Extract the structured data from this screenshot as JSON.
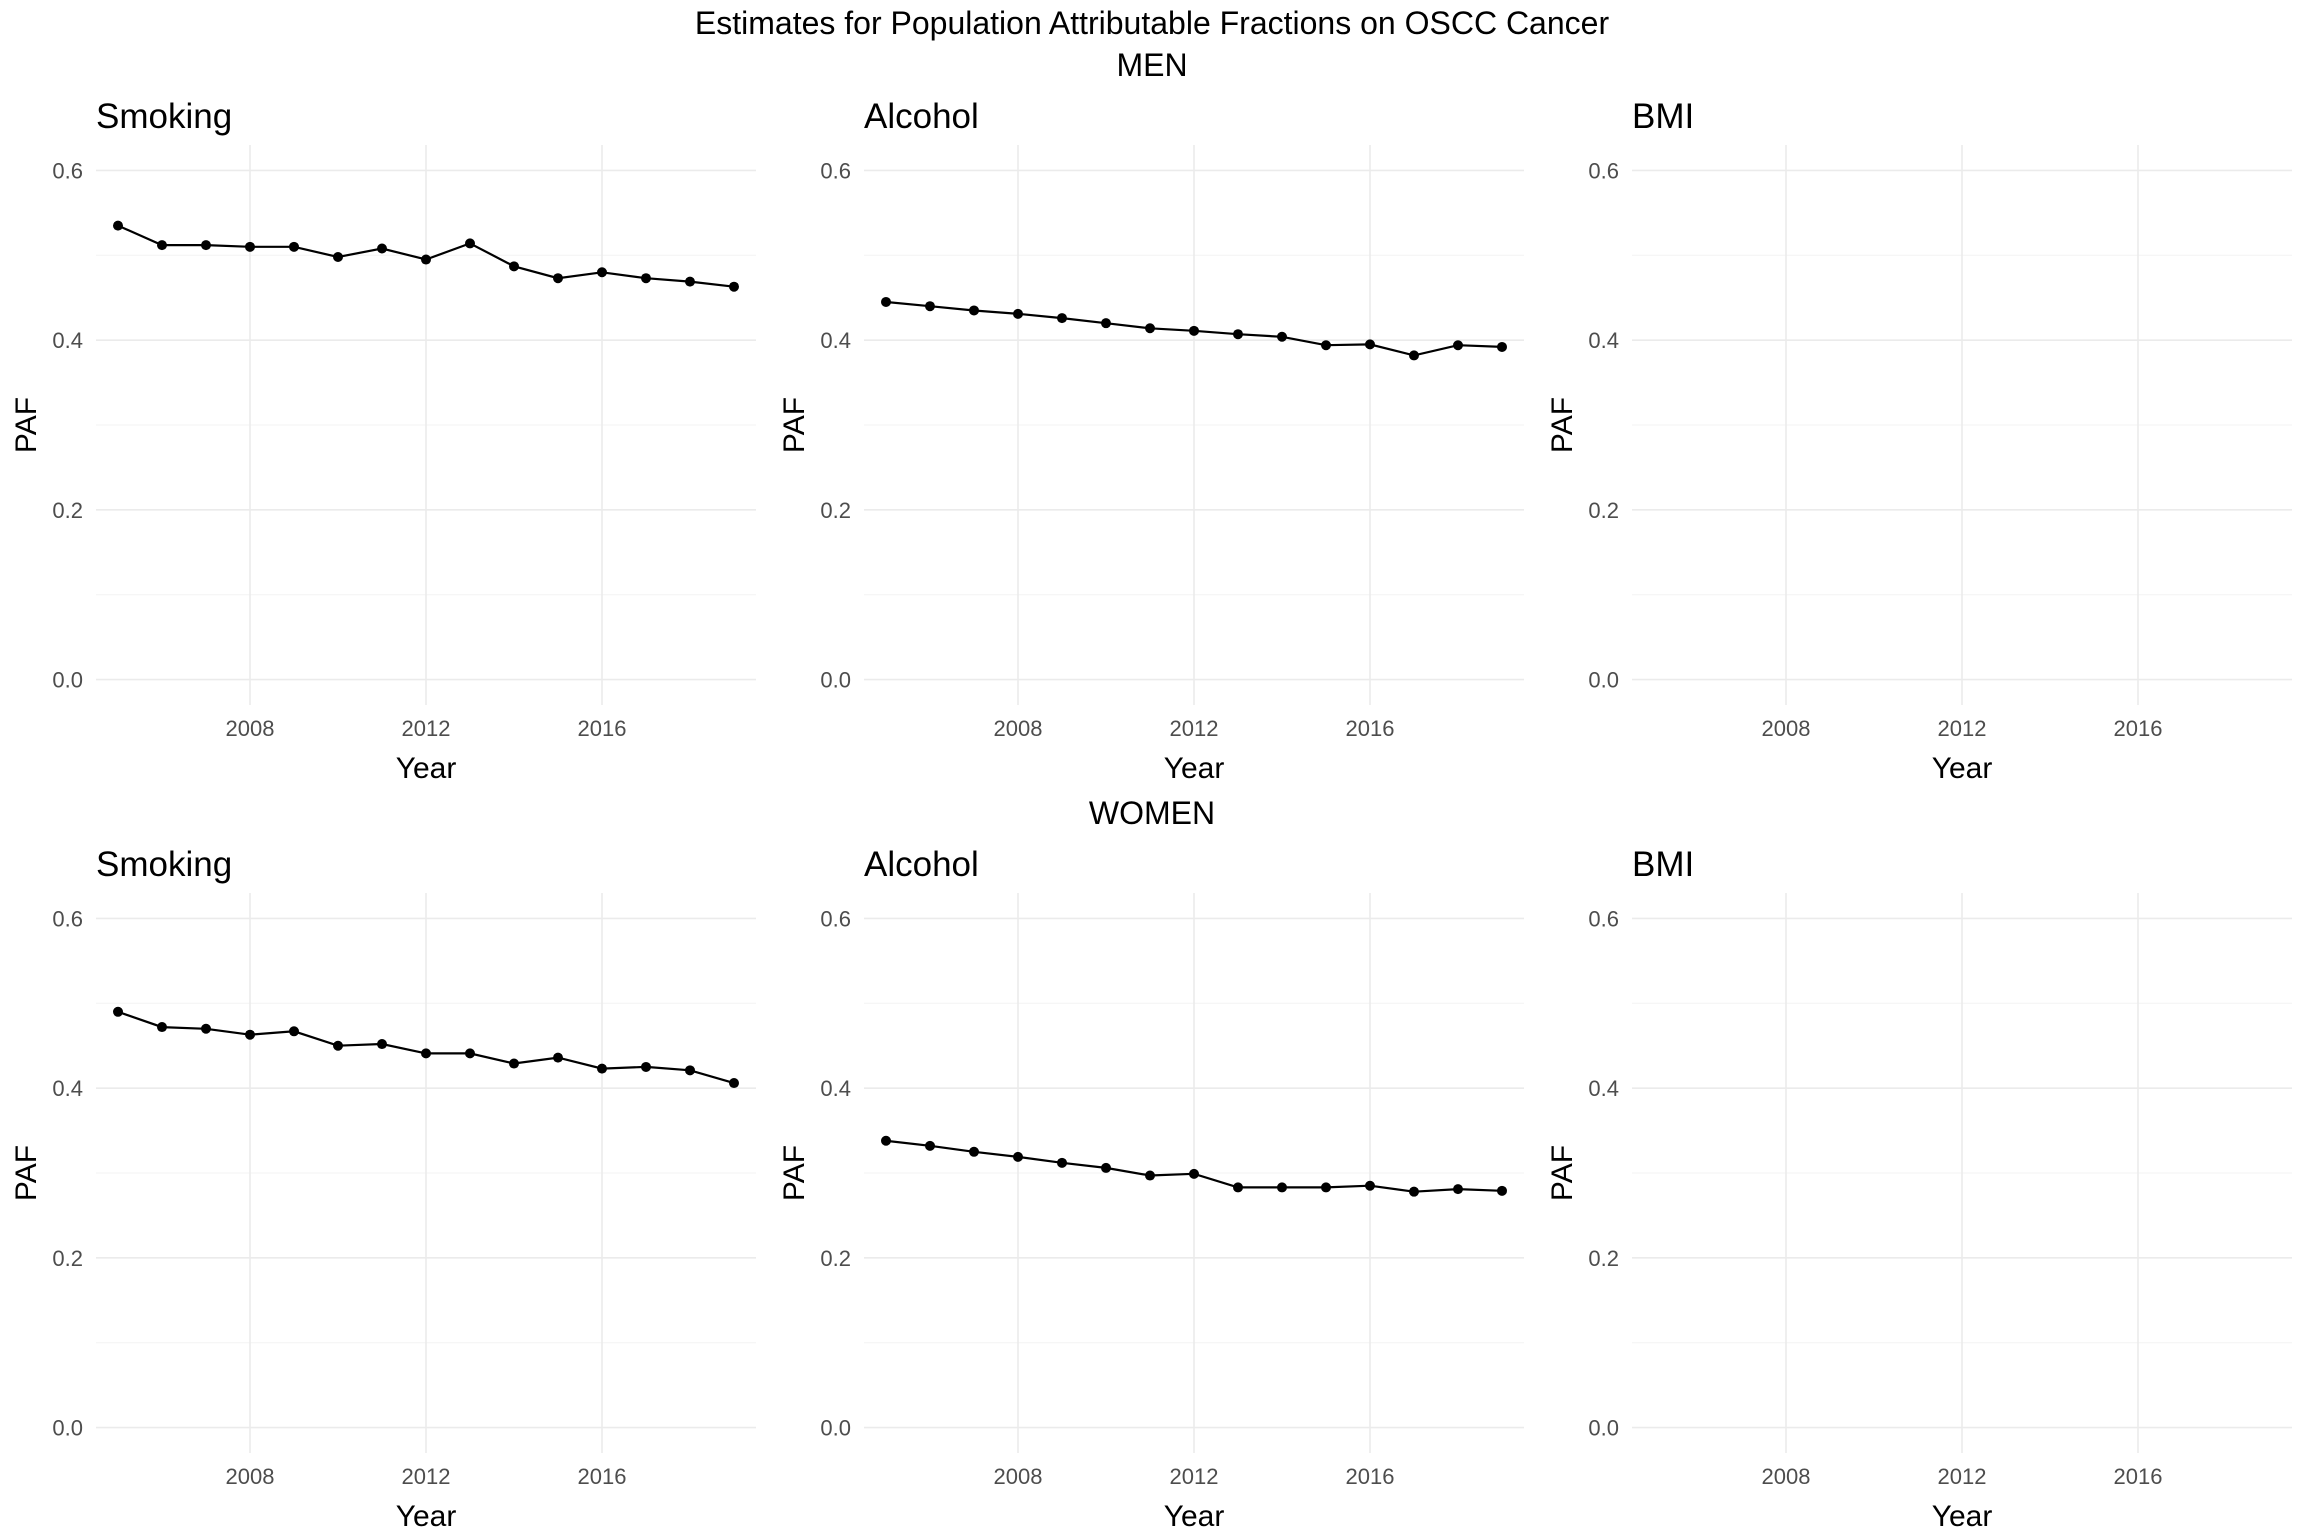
{
  "figure": {
    "title": "Estimates for Population Attributable Fractions on OSCC Cancer",
    "sections": [
      "MEN",
      "WOMEN"
    ]
  },
  "chart_data": [
    {
      "type": "line",
      "section": "MEN",
      "title": "Smoking",
      "xlabel": "Year",
      "ylabel": "PAF",
      "xlim": [
        2004.5,
        2019.5
      ],
      "ylim": [
        -0.03,
        0.63
      ],
      "xticks": [
        2008,
        2012,
        2016
      ],
      "yticks": [
        0.0,
        0.2,
        0.4,
        0.6
      ],
      "grid": true,
      "x": [
        2005,
        2006,
        2007,
        2008,
        2009,
        2010,
        2011,
        2012,
        2013,
        2014,
        2015,
        2016,
        2017,
        2018,
        2019
      ],
      "y": [
        0.535,
        0.512,
        0.512,
        0.51,
        0.51,
        0.498,
        0.508,
        0.495,
        0.514,
        0.487,
        0.473,
        0.48,
        0.473,
        0.469,
        0.463
      ]
    },
    {
      "type": "line",
      "section": "MEN",
      "title": "Alcohol",
      "xlabel": "Year",
      "ylabel": "PAF",
      "xlim": [
        2004.5,
        2019.5
      ],
      "ylim": [
        -0.03,
        0.63
      ],
      "xticks": [
        2008,
        2012,
        2016
      ],
      "yticks": [
        0.0,
        0.2,
        0.4,
        0.6
      ],
      "grid": true,
      "x": [
        2005,
        2006,
        2007,
        2008,
        2009,
        2010,
        2011,
        2012,
        2013,
        2014,
        2015,
        2016,
        2017,
        2018,
        2019
      ],
      "y": [
        0.445,
        0.44,
        0.435,
        0.431,
        0.426,
        0.42,
        0.414,
        0.411,
        0.407,
        0.404,
        0.394,
        0.395,
        0.382,
        0.394,
        0.392
      ]
    },
    {
      "type": "line",
      "section": "MEN",
      "title": "BMI",
      "xlabel": "Year",
      "ylabel": "PAF",
      "xlim": [
        2004.5,
        2019.5
      ],
      "ylim": [
        -0.03,
        0.63
      ],
      "xticks": [
        2008,
        2012,
        2016
      ],
      "yticks": [
        0.0,
        0.2,
        0.4,
        0.6
      ],
      "grid": true,
      "x": [],
      "y": []
    },
    {
      "type": "line",
      "section": "WOMEN",
      "title": "Smoking",
      "xlabel": "Year",
      "ylabel": "PAF",
      "xlim": [
        2004.5,
        2019.5
      ],
      "ylim": [
        -0.03,
        0.63
      ],
      "xticks": [
        2008,
        2012,
        2016
      ],
      "yticks": [
        0.0,
        0.2,
        0.4,
        0.6
      ],
      "grid": true,
      "x": [
        2005,
        2006,
        2007,
        2008,
        2009,
        2010,
        2011,
        2012,
        2013,
        2014,
        2015,
        2016,
        2017,
        2018,
        2019
      ],
      "y": [
        0.49,
        0.472,
        0.47,
        0.463,
        0.467,
        0.45,
        0.452,
        0.441,
        0.441,
        0.429,
        0.436,
        0.423,
        0.425,
        0.421,
        0.406
      ]
    },
    {
      "type": "line",
      "section": "WOMEN",
      "title": "Alcohol",
      "xlabel": "Year",
      "ylabel": "PAF",
      "xlim": [
        2004.5,
        2019.5
      ],
      "ylim": [
        -0.03,
        0.63
      ],
      "xticks": [
        2008,
        2012,
        2016
      ],
      "yticks": [
        0.0,
        0.2,
        0.4,
        0.6
      ],
      "grid": true,
      "x": [
        2005,
        2006,
        2007,
        2008,
        2009,
        2010,
        2011,
        2012,
        2013,
        2014,
        2015,
        2016,
        2017,
        2018,
        2019
      ],
      "y": [
        0.338,
        0.332,
        0.325,
        0.319,
        0.312,
        0.306,
        0.297,
        0.299,
        0.283,
        0.283,
        0.283,
        0.285,
        0.278,
        0.281,
        0.279
      ]
    },
    {
      "type": "line",
      "section": "WOMEN",
      "title": "BMI",
      "xlabel": "Year",
      "ylabel": "PAF",
      "xlim": [
        2004.5,
        2019.5
      ],
      "ylim": [
        -0.03,
        0.63
      ],
      "xticks": [
        2008,
        2012,
        2016
      ],
      "yticks": [
        0.0,
        0.2,
        0.4,
        0.6
      ],
      "grid": true,
      "x": [],
      "y": []
    }
  ]
}
